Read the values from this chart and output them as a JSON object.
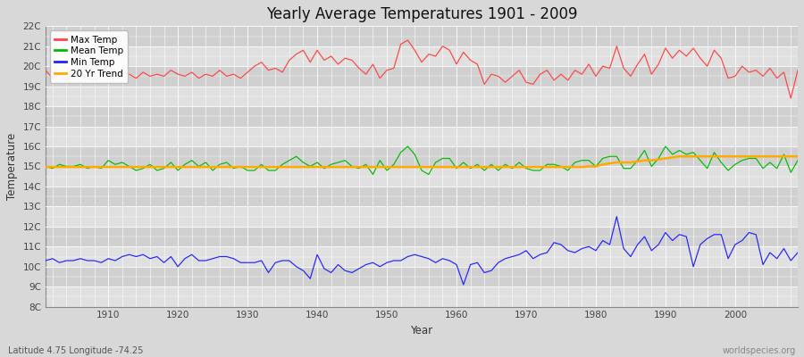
{
  "title": "Yearly Average Temperatures 1901 - 2009",
  "xlabel": "Year",
  "ylabel": "Temperature",
  "subtitle_left": "Latitude 4.75 Longitude -74.25",
  "subtitle_right": "worldspecies.org",
  "ylim": [
    8,
    22
  ],
  "xlim": [
    1901,
    2009
  ],
  "yticks": [
    8,
    9,
    10,
    11,
    12,
    13,
    14,
    15,
    16,
    17,
    18,
    19,
    20,
    21,
    22
  ],
  "ytick_labels": [
    "8C",
    "9C",
    "10C",
    "11C",
    "12C",
    "13C",
    "14C",
    "15C",
    "16C",
    "17C",
    "18C",
    "19C",
    "20C",
    "21C",
    "22C"
  ],
  "bg_color": "#d8d8d8",
  "plot_bg_color": "#d8d8d8",
  "grid_color": "#ffffff",
  "max_temp_color": "#ff4444",
  "mean_temp_color": "#00bb00",
  "min_temp_color": "#2222ff",
  "trend_color": "#ffaa00",
  "years": [
    1901,
    1902,
    1903,
    1904,
    1905,
    1906,
    1907,
    1908,
    1909,
    1910,
    1911,
    1912,
    1913,
    1914,
    1915,
    1916,
    1917,
    1918,
    1919,
    1920,
    1921,
    1922,
    1923,
    1924,
    1925,
    1926,
    1927,
    1928,
    1929,
    1930,
    1931,
    1932,
    1933,
    1934,
    1935,
    1936,
    1937,
    1938,
    1939,
    1940,
    1941,
    1942,
    1943,
    1944,
    1945,
    1946,
    1947,
    1948,
    1949,
    1950,
    1951,
    1952,
    1953,
    1954,
    1955,
    1956,
    1957,
    1958,
    1959,
    1960,
    1961,
    1962,
    1963,
    1964,
    1965,
    1966,
    1967,
    1968,
    1969,
    1970,
    1971,
    1972,
    1973,
    1974,
    1975,
    1976,
    1977,
    1978,
    1979,
    1980,
    1981,
    1982,
    1983,
    1984,
    1985,
    1986,
    1987,
    1988,
    1989,
    1990,
    1991,
    1992,
    1993,
    1994,
    1995,
    1996,
    1997,
    1998,
    1999,
    2000,
    2001,
    2002,
    2003,
    2004,
    2005,
    2006,
    2007,
    2008,
    2009
  ],
  "max_temp": [
    19.8,
    19.4,
    19.6,
    19.3,
    19.7,
    19.5,
    19.4,
    19.3,
    19.5,
    20.2,
    19.5,
    19.7,
    19.6,
    19.4,
    19.7,
    19.5,
    19.6,
    19.5,
    19.8,
    19.6,
    19.5,
    19.7,
    19.4,
    19.6,
    19.5,
    19.8,
    19.5,
    19.6,
    19.4,
    19.7,
    20.0,
    20.2,
    19.8,
    19.9,
    19.7,
    20.3,
    20.6,
    20.8,
    20.2,
    20.8,
    20.3,
    20.5,
    20.1,
    20.4,
    20.3,
    19.9,
    19.6,
    20.1,
    19.4,
    19.8,
    19.9,
    21.1,
    21.3,
    20.8,
    20.2,
    20.6,
    20.5,
    21.0,
    20.8,
    20.1,
    20.7,
    20.3,
    20.1,
    19.1,
    19.6,
    19.5,
    19.2,
    19.5,
    19.8,
    19.2,
    19.1,
    19.6,
    19.8,
    19.3,
    19.6,
    19.3,
    19.8,
    19.6,
    20.1,
    19.5,
    20.0,
    19.9,
    21.0,
    19.9,
    19.5,
    20.1,
    20.6,
    19.6,
    20.1,
    20.9,
    20.4,
    20.8,
    20.5,
    20.9,
    20.4,
    20.0,
    20.8,
    20.4,
    19.4,
    19.5,
    20.0,
    19.7,
    19.8,
    19.5,
    19.9,
    19.4,
    19.7,
    18.4,
    19.8
  ],
  "mean_temp": [
    15.0,
    14.9,
    15.1,
    15.0,
    15.0,
    15.1,
    14.9,
    15.0,
    14.9,
    15.3,
    15.1,
    15.2,
    15.0,
    14.8,
    14.9,
    15.1,
    14.8,
    14.9,
    15.2,
    14.8,
    15.1,
    15.3,
    15.0,
    15.2,
    14.8,
    15.1,
    15.2,
    14.9,
    15.0,
    14.8,
    14.8,
    15.1,
    14.8,
    14.8,
    15.1,
    15.3,
    15.5,
    15.2,
    15.0,
    15.2,
    14.9,
    15.1,
    15.2,
    15.3,
    15.0,
    14.9,
    15.1,
    14.6,
    15.3,
    14.8,
    15.1,
    15.7,
    16.0,
    15.6,
    14.8,
    14.6,
    15.2,
    15.4,
    15.4,
    14.9,
    15.2,
    14.9,
    15.1,
    14.8,
    15.1,
    14.8,
    15.1,
    14.9,
    15.2,
    14.9,
    14.8,
    14.8,
    15.1,
    15.1,
    15.0,
    14.8,
    15.2,
    15.3,
    15.3,
    15.0,
    15.4,
    15.5,
    15.5,
    14.9,
    14.9,
    15.3,
    15.8,
    15.0,
    15.4,
    16.0,
    15.6,
    15.8,
    15.6,
    15.7,
    15.3,
    14.9,
    15.7,
    15.2,
    14.8,
    15.1,
    15.3,
    15.4,
    15.4,
    14.9,
    15.2,
    14.9,
    15.6,
    14.7,
    15.3
  ],
  "min_temp": [
    10.3,
    10.4,
    10.2,
    10.3,
    10.3,
    10.4,
    10.3,
    10.3,
    10.2,
    10.4,
    10.3,
    10.5,
    10.6,
    10.5,
    10.6,
    10.4,
    10.5,
    10.2,
    10.5,
    10.0,
    10.4,
    10.6,
    10.3,
    10.3,
    10.4,
    10.5,
    10.5,
    10.4,
    10.2,
    10.2,
    10.2,
    10.3,
    9.7,
    10.2,
    10.3,
    10.3,
    10.0,
    9.8,
    9.4,
    10.6,
    9.9,
    9.7,
    10.1,
    9.8,
    9.7,
    9.9,
    10.1,
    10.2,
    10.0,
    10.2,
    10.3,
    10.3,
    10.5,
    10.6,
    10.5,
    10.4,
    10.2,
    10.4,
    10.3,
    10.1,
    9.1,
    10.1,
    10.2,
    9.7,
    9.8,
    10.2,
    10.4,
    10.5,
    10.6,
    10.8,
    10.4,
    10.6,
    10.7,
    11.2,
    11.1,
    10.8,
    10.7,
    10.9,
    11.0,
    10.8,
    11.3,
    11.1,
    12.5,
    10.9,
    10.5,
    11.1,
    11.5,
    10.8,
    11.1,
    11.7,
    11.3,
    11.6,
    11.5,
    10.0,
    11.1,
    11.4,
    11.6,
    11.6,
    10.4,
    11.1,
    11.3,
    11.7,
    11.6,
    10.1,
    10.7,
    10.4,
    10.9,
    10.3,
    10.7
  ],
  "trend": [
    14.97,
    14.97,
    14.97,
    14.97,
    14.97,
    14.97,
    14.97,
    14.97,
    14.97,
    14.97,
    14.97,
    14.97,
    14.97,
    14.97,
    14.97,
    14.97,
    14.97,
    14.97,
    14.97,
    14.97,
    14.97,
    14.97,
    14.97,
    14.97,
    14.97,
    14.97,
    14.97,
    14.97,
    14.97,
    14.97,
    14.97,
    14.97,
    14.97,
    14.97,
    14.97,
    14.97,
    14.97,
    14.97,
    14.97,
    14.97,
    14.97,
    14.97,
    14.97,
    14.97,
    14.97,
    14.97,
    14.97,
    14.97,
    14.97,
    14.97,
    14.97,
    14.97,
    14.97,
    14.97,
    14.97,
    14.97,
    14.97,
    14.97,
    14.97,
    14.97,
    14.97,
    14.97,
    14.97,
    14.97,
    14.97,
    14.97,
    14.97,
    14.97,
    14.97,
    14.97,
    14.97,
    14.97,
    14.97,
    14.97,
    14.97,
    14.97,
    14.97,
    14.97,
    15.0,
    15.0,
    15.1,
    15.15,
    15.2,
    15.2,
    15.2,
    15.25,
    15.3,
    15.3,
    15.35,
    15.4,
    15.45,
    15.5,
    15.5,
    15.5,
    15.5,
    15.5,
    15.5,
    15.5,
    15.5,
    15.5,
    15.5,
    15.5,
    15.5,
    15.5,
    15.5,
    15.5,
    15.5,
    15.5,
    15.5
  ]
}
